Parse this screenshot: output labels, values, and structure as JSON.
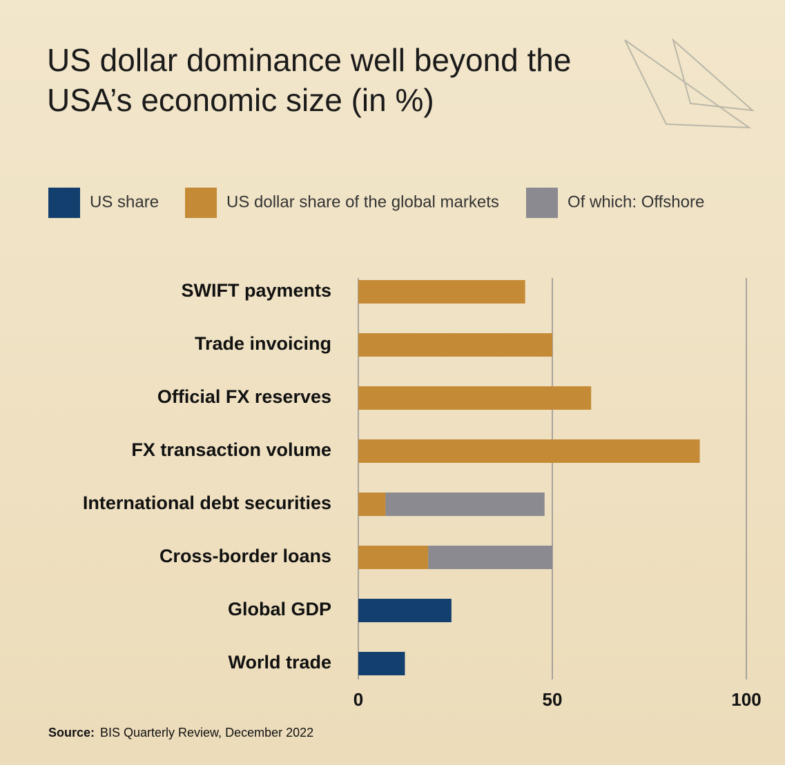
{
  "chart_data": {
    "type": "stacked-bar-horizontal",
    "title": "US dollar dominance well beyond the USA’s economic size (in %)",
    "categories": [
      "SWIFT payments",
      "Trade invoicing",
      "Official FX reserves",
      "FX transaction volume",
      "International debt securities",
      "Cross-border loans",
      "Global GDP",
      "World trade"
    ],
    "series": [
      {
        "name": "US share",
        "color": "#133f6e",
        "values": [
          null,
          null,
          null,
          null,
          null,
          null,
          24,
          12
        ]
      },
      {
        "name": "US dollar share of the global markets",
        "color": "#c48a35",
        "values": [
          43,
          50,
          60,
          88,
          7,
          18,
          null,
          null
        ]
      },
      {
        "name": "Of which: Offshore",
        "color": "#8a8a90",
        "values": [
          null,
          null,
          null,
          null,
          41,
          32,
          null,
          null
        ]
      }
    ],
    "xlim": [
      0,
      100
    ],
    "xticks": [
      0,
      50,
      100
    ],
    "grid": true,
    "source_label": "Source:",
    "source": "BIS Quarterly Review, December 2022"
  }
}
